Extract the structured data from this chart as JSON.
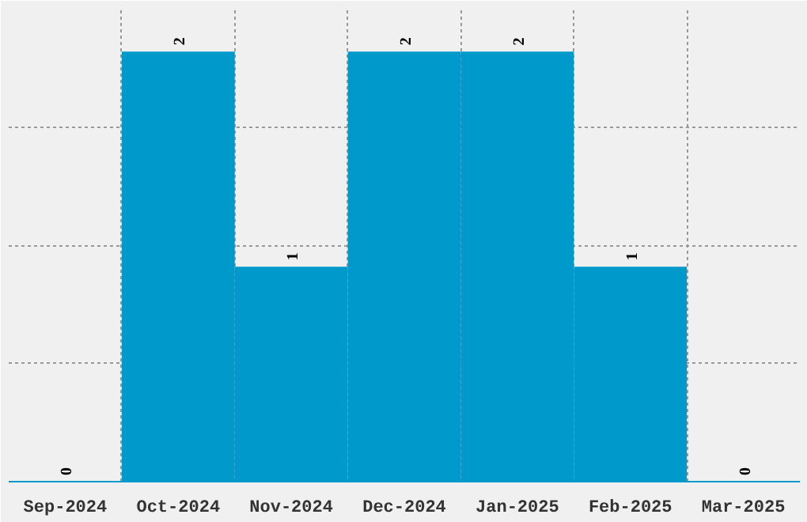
{
  "chart_data": {
    "type": "bar",
    "categories": [
      "Sep-2024",
      "Oct-2024",
      "Nov-2024",
      "Dec-2024",
      "Jan-2025",
      "Feb-2025",
      "Mar-2025"
    ],
    "values": [
      0,
      2,
      1,
      2,
      2,
      1,
      0
    ],
    "color": "#0099cc",
    "ylim": [
      0,
      2.2
    ],
    "yticks": [
      {
        "value": 0.55,
        "label": null
      },
      {
        "value": 1.1,
        "label": null
      },
      {
        "value": 1.65,
        "label": null
      }
    ],
    "grid": true,
    "data_labels": true,
    "tick_labels": "x"
  }
}
